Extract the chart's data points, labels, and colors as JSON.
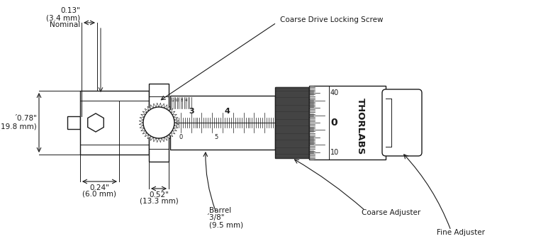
{
  "bg_color": "#ffffff",
  "line_color": "#1a1a1a",
  "figsize": [
    7.8,
    3.47
  ],
  "dpi": 100,
  "annotations": {
    "coarse_drive_locking_screw": "Coarse Drive Locking Screw",
    "coarse_adjuster": "Coarse Adjuster",
    "fine_adjuster": "Fine Adjuster",
    "barrel_label": "Barrel",
    "barrel_dim1": "́3/8\"",
    "barrel_dim2": "(9.5 mm)"
  },
  "dim_labels": {
    "top_dim_line1": "0.13\"",
    "top_dim_line2": "(3.4 mm)",
    "top_dim_line3": "Nominal",
    "diam_line1": "́0.78\"",
    "diam_line2": "(19.8 mm)",
    "left_dim_line1": "0.24\"",
    "left_dim_line2": "(6.0 mm)",
    "mid_dim_line1": "0.52\"",
    "mid_dim_line2": "(13.3 mm)"
  },
  "barrel_numbers_top": [
    "3",
    "4"
  ],
  "barrel_numbers_bot": [
    "0",
    "5"
  ],
  "fine_numbers": [
    "40",
    "0",
    "10"
  ],
  "thorlabs_text": "THORLABS"
}
